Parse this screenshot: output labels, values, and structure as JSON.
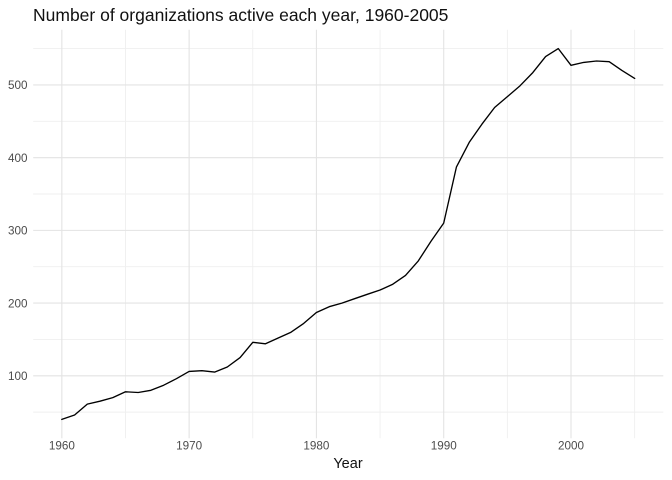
{
  "chart_data": {
    "type": "line",
    "title": "Number of organizations active each year, 1960-2005",
    "xlabel": "Year",
    "ylabel": "",
    "x": [
      1960,
      1961,
      1962,
      1963,
      1964,
      1965,
      1966,
      1967,
      1968,
      1969,
      1970,
      1971,
      1972,
      1973,
      1974,
      1975,
      1976,
      1977,
      1978,
      1979,
      1980,
      1981,
      1982,
      1983,
      1984,
      1985,
      1986,
      1987,
      1988,
      1989,
      1990,
      1991,
      1992,
      1993,
      1994,
      1995,
      1996,
      1997,
      1998,
      1999,
      2000,
      2001,
      2002,
      2003,
      2004,
      2005
    ],
    "values": [
      40,
      46,
      61,
      65,
      70,
      78,
      77,
      80,
      87,
      96,
      106,
      107,
      105,
      112,
      125,
      146,
      144,
      152,
      160,
      172,
      187,
      195,
      200,
      206,
      212,
      218,
      226,
      238,
      258,
      285,
      310,
      387,
      421,
      446,
      469,
      484,
      499,
      517,
      539,
      550,
      527,
      531,
      533,
      532,
      520,
      509
    ],
    "xlim": [
      1957.75,
      2007.25
    ],
    "ylim": [
      14,
      576
    ],
    "x_ticks_major": [
      1960,
      1970,
      1980,
      1990,
      2000
    ],
    "x_ticks_minor": [
      1965,
      1975,
      1985,
      1995,
      2005
    ],
    "y_ticks_major": [
      100,
      200,
      300,
      400,
      500
    ],
    "y_ticks_minor": [
      50,
      150,
      250,
      350,
      450,
      550
    ],
    "grid": "major+minor",
    "legend": "none",
    "colors": {
      "line": "#000000",
      "grid_major": "#e3e3e3",
      "grid_minor": "#efefef",
      "tick_label": "#4d4d4d",
      "title": "#111111",
      "axis_title": "#111111",
      "background": "#ffffff"
    }
  }
}
